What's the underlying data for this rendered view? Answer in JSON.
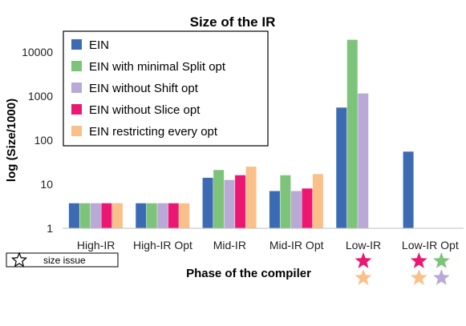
{
  "chart_data": {
    "type": "bar",
    "title": "Size of the IR",
    "xlabel": "Phase of the compiler",
    "ylabel": "log (Size/1000)",
    "yscale": "log",
    "ylim": [
      1,
      30000
    ],
    "yticks": [
      "1",
      "10",
      "100",
      "1000",
      "10000"
    ],
    "ytick_values": [
      1,
      10,
      100,
      1000,
      10000
    ],
    "grid": false,
    "legend_position": "top-left",
    "categories": [
      "High-IR",
      "High-IR Opt",
      "Mid-IR",
      "Mid-IR Opt",
      "Low-IR",
      "Low-IR Opt"
    ],
    "series": [
      {
        "name": "EIN",
        "color": "#3d6bb3",
        "values": [
          3.7,
          3.7,
          14,
          7,
          550,
          55
        ]
      },
      {
        "name": "EIN with minimal Split opt",
        "color": "#7dc47a",
        "values": [
          3.7,
          3.7,
          21,
          16,
          19000,
          null
        ]
      },
      {
        "name": "EIN without Shift opt",
        "color": "#b8a9d6",
        "values": [
          3.7,
          3.7,
          12.5,
          7,
          1150,
          null
        ]
      },
      {
        "name": "EIN without Slice opt",
        "color": "#ec1772",
        "values": [
          3.7,
          3.7,
          16,
          8,
          null,
          null
        ]
      },
      {
        "name": "EIN restricting every opt",
        "color": "#f9c08a",
        "values": [
          3.7,
          3.7,
          25,
          17,
          null,
          null
        ]
      }
    ],
    "size_issue_note": "size issue",
    "size_issue_marks": [
      {
        "category": "Low-IR",
        "series": [
          "EIN without Slice opt",
          "EIN restricting every opt"
        ]
      },
      {
        "category": "Low-IR Opt",
        "series": [
          "EIN without Slice opt",
          "EIN with minimal Split opt",
          "EIN restricting every opt",
          "EIN without Shift opt"
        ]
      }
    ]
  }
}
